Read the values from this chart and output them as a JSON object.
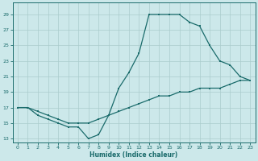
{
  "xlabel": "Humidex (Indice chaleur)",
  "bg_color": "#cce8ea",
  "grid_color": "#aacccc",
  "line_color": "#1a6b6b",
  "xlim": [
    -0.5,
    23.5
  ],
  "ylim": [
    12.5,
    30.5
  ],
  "xticks": [
    0,
    1,
    2,
    3,
    4,
    5,
    6,
    7,
    8,
    9,
    10,
    11,
    12,
    13,
    14,
    15,
    16,
    17,
    18,
    19,
    20,
    21,
    22,
    23
  ],
  "yticks": [
    13,
    15,
    17,
    19,
    21,
    23,
    25,
    27,
    29
  ],
  "line1_x": [
    0,
    1,
    2,
    3,
    4,
    5,
    6,
    7,
    8,
    9,
    10,
    11,
    12,
    13,
    14,
    15,
    16,
    17
  ],
  "line1_y": [
    17,
    17,
    16,
    15.5,
    15,
    14.5,
    14.5,
    13,
    13.5,
    16,
    19.5,
    21.5,
    24,
    29,
    29,
    29,
    29,
    28
  ],
  "line2_x": [
    0,
    1,
    2,
    3,
    4,
    5,
    6,
    7,
    8,
    9,
    10,
    11,
    12,
    13,
    14,
    15,
    16,
    17,
    18,
    19,
    20,
    21,
    22,
    23
  ],
  "line2_y": [
    17,
    17,
    16.5,
    16,
    15.5,
    15,
    15,
    15,
    15.5,
    16,
    16.5,
    17,
    17.5,
    18,
    18.5,
    18.5,
    19,
    19,
    19.5,
    19.5,
    19.5,
    20,
    20.5,
    20.5
  ],
  "line3_x": [
    17,
    18,
    19,
    20,
    21,
    22,
    23
  ],
  "line3_y": [
    28,
    27.5,
    25,
    23,
    22.5,
    21,
    20.5
  ]
}
